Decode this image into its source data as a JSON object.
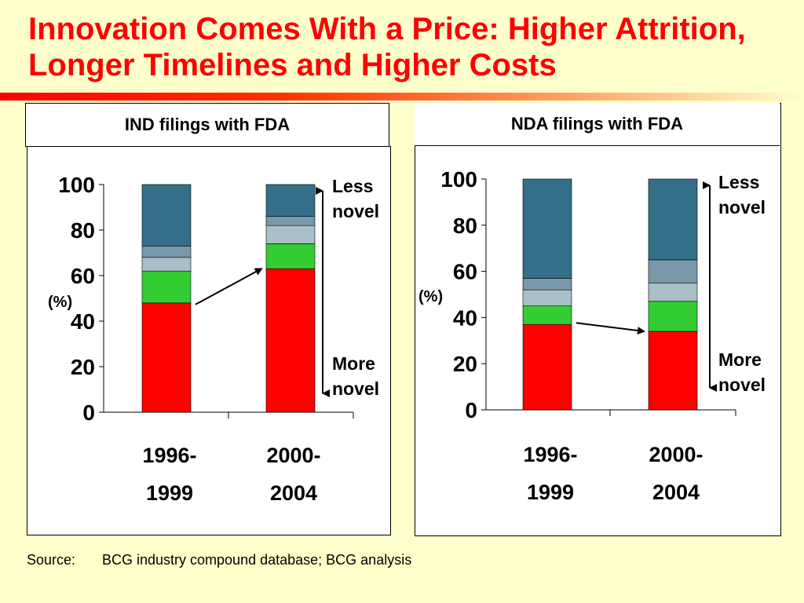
{
  "slide": {
    "title": "Innovation Comes With a Price: Higher Attrition, Longer Timelines and Higher Costs",
    "source_label": "Source:",
    "source_text": "BCG industry compound database; BCG analysis"
  },
  "colors": {
    "title": "#ff0000",
    "background": "#ffffcc",
    "more_novel": "#ff0000",
    "green": "#33cc33",
    "light": "#aabfc8",
    "mid": "#7799aa",
    "less_novel": "#336f8a"
  },
  "chart_data": [
    {
      "type": "bar",
      "stacked": true,
      "title": "IND filings with FDA",
      "ylabel": "(%)",
      "ylim": [
        0,
        100
      ],
      "yticks": [
        "0",
        "20",
        "40",
        "60",
        "80",
        "100"
      ],
      "categories": [
        [
          "1996-",
          "1999"
        ],
        [
          "2000-",
          "2004"
        ]
      ],
      "series": [
        {
          "color": "#ff0000",
          "values": [
            48,
            63
          ]
        },
        {
          "color": "#33cc33",
          "values": [
            14,
            11
          ]
        },
        {
          "color": "#aabfc8",
          "values": [
            6,
            8
          ]
        },
        {
          "color": "#7799aa",
          "values": [
            5,
            4
          ]
        },
        {
          "color": "#336f8a",
          "values": [
            27,
            14
          ]
        }
      ],
      "annotations": {
        "top_label": [
          "Less",
          "novel"
        ],
        "bottom_label": [
          "More",
          "novel"
        ]
      }
    },
    {
      "type": "bar",
      "stacked": true,
      "title": "NDA filings with FDA",
      "ylabel": "(%)",
      "ylim": [
        0,
        100
      ],
      "yticks": [
        "0",
        "20",
        "40",
        "60",
        "80",
        "100"
      ],
      "categories": [
        [
          "1996-",
          "1999"
        ],
        [
          "2000-",
          "2004"
        ]
      ],
      "series": [
        {
          "color": "#ff0000",
          "values": [
            37,
            34
          ]
        },
        {
          "color": "#33cc33",
          "values": [
            8,
            13
          ]
        },
        {
          "color": "#aabfc8",
          "values": [
            7,
            8
          ]
        },
        {
          "color": "#7799aa",
          "values": [
            5,
            10
          ]
        },
        {
          "color": "#336f8a",
          "values": [
            43,
            35
          ]
        }
      ],
      "annotations": {
        "top_label": [
          "Less",
          "novel"
        ],
        "bottom_label": [
          "More",
          "novel"
        ]
      }
    }
  ]
}
